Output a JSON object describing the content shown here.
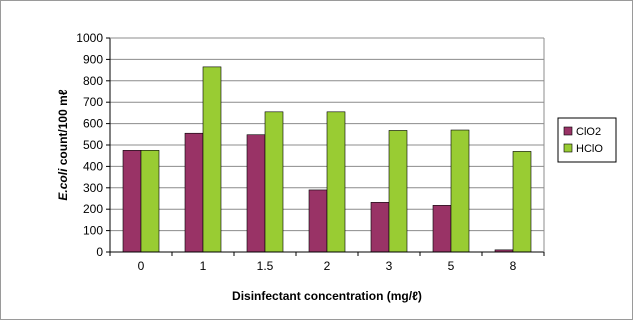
{
  "chart_data": {
    "type": "bar",
    "title": "",
    "xlabel": "Disinfectant concentration (mg/ℓ)",
    "ylabel_italic": "E.coli",
    "ylabel_rest": " count/100 mℓ",
    "categories": [
      "0",
      "1",
      "1.5",
      "2",
      "3",
      "5",
      "8"
    ],
    "series": [
      {
        "name": "ClO2",
        "color": "#993366",
        "values": [
          475,
          555,
          548,
          290,
          232,
          218,
          10
        ]
      },
      {
        "name": "HClO",
        "color": "#99CC33",
        "values": [
          475,
          865,
          655,
          655,
          568,
          570,
          470
        ]
      }
    ],
    "ylim": [
      0,
      1000
    ],
    "yticks": [
      0,
      100,
      200,
      300,
      400,
      500,
      600,
      700,
      800,
      900,
      1000
    ],
    "grid": true,
    "legend_position": "right"
  }
}
